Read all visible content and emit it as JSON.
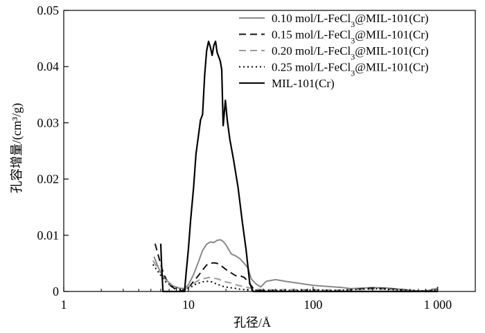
{
  "chart_data": {
    "type": "line",
    "title": "",
    "xlabel": "孔径/Å",
    "ylabel": "孔容增量/(cm³/g)",
    "x_scale": "log",
    "xlim": [
      1,
      2000
    ],
    "ylim": [
      0,
      0.05
    ],
    "x_ticks": [
      1,
      10,
      100,
      1000
    ],
    "x_tick_labels": [
      "1",
      "10",
      "100",
      "1 000"
    ],
    "y_ticks": [
      0,
      0.01,
      0.02,
      0.03,
      0.04,
      0.05
    ],
    "y_tick_labels": [
      "0",
      "0.01",
      "0.02",
      "0.03",
      "0.04",
      "0.05"
    ],
    "grid": false,
    "legend_position": "top-right",
    "series": [
      {
        "name": "0.10 mol/L-FeCl3@MIL-101(Cr)",
        "color": "#888888",
        "dash": "solid",
        "points": [
          [
            5.3,
            0.0062
          ],
          [
            5.8,
            0.004
          ],
          [
            6.5,
            0.0022
          ],
          [
            7.5,
            0.001
          ],
          [
            8.5,
            0.0006
          ],
          [
            9.3,
            0.0005
          ],
          [
            10,
            0.0012
          ],
          [
            11,
            0.003
          ],
          [
            12,
            0.0052
          ],
          [
            13,
            0.0073
          ],
          [
            14,
            0.0084
          ],
          [
            15,
            0.0088
          ],
          [
            16,
            0.0087
          ],
          [
            17,
            0.0091
          ],
          [
            18,
            0.0092
          ],
          [
            19,
            0.0089
          ],
          [
            20,
            0.0083
          ],
          [
            22,
            0.0067
          ],
          [
            24,
            0.0063
          ],
          [
            26,
            0.0058
          ],
          [
            28,
            0.005
          ],
          [
            30,
            0.0042
          ],
          [
            32,
            0.0022
          ],
          [
            35,
            0.0013
          ],
          [
            38,
            0.0008
          ],
          [
            42,
            0.0018
          ],
          [
            50,
            0.0021
          ],
          [
            60,
            0.0018
          ],
          [
            80,
            0.0014
          ],
          [
            100,
            0.0011
          ],
          [
            130,
            0.0009
          ],
          [
            170,
            0.0007
          ],
          [
            200,
            0.0005
          ],
          [
            250,
            0.0006
          ],
          [
            300,
            0.0007
          ],
          [
            400,
            0.0006
          ],
          [
            550,
            0.0003
          ],
          [
            700,
            0.0001
          ],
          [
            850,
            0.0002
          ],
          [
            1000,
            0.0006
          ]
        ]
      },
      {
        "name": "0.15 mol/L-FeCl3@MIL-101(Cr)",
        "color": "#111111",
        "dash": "10,6",
        "points": [
          [
            5.4,
            0.0085
          ],
          [
            5.8,
            0.006
          ],
          [
            6.3,
            0.0032
          ],
          [
            7,
            0.0012
          ],
          [
            8,
            0.0003
          ],
          [
            9,
            0.0001
          ],
          [
            10,
            0.0006
          ],
          [
            11,
            0.0018
          ],
          [
            12,
            0.0028
          ],
          [
            13,
            0.0038
          ],
          [
            14,
            0.0047
          ],
          [
            15,
            0.005
          ],
          [
            16,
            0.0051
          ],
          [
            17,
            0.005
          ],
          [
            18,
            0.0047
          ],
          [
            20,
            0.0039
          ],
          [
            22,
            0.0033
          ],
          [
            24,
            0.0028
          ],
          [
            26,
            0.0028
          ],
          [
            28,
            0.0025
          ],
          [
            30,
            0.0018
          ],
          [
            33,
            0.0006
          ],
          [
            36,
            0.0002
          ],
          [
            45,
            0.0002
          ],
          [
            60,
            0.0003
          ],
          [
            80,
            0.0003
          ],
          [
            100,
            0.0003
          ],
          [
            150,
            0.0002
          ],
          [
            200,
            0.0003
          ],
          [
            250,
            0.0005
          ],
          [
            300,
            0.0006
          ],
          [
            400,
            0.0005
          ],
          [
            550,
            0.0003
          ],
          [
            700,
            0.0001
          ],
          [
            850,
            0.0001
          ],
          [
            1000,
            0.0003
          ]
        ]
      },
      {
        "name": "0.20 mol/L-FeCl3@MIL-101(Cr)",
        "color": "#999999",
        "dash": "10,6",
        "points": [
          [
            5.2,
            0.0055
          ],
          [
            5.8,
            0.0038
          ],
          [
            6.5,
            0.0022
          ],
          [
            7.5,
            0.001
          ],
          [
            8.5,
            0.0005
          ],
          [
            9.5,
            0.0005
          ],
          [
            10.5,
            0.001
          ],
          [
            11.5,
            0.0017
          ],
          [
            12.5,
            0.0022
          ],
          [
            13.5,
            0.0023
          ],
          [
            14.5,
            0.0025
          ],
          [
            15.5,
            0.0024
          ],
          [
            16.5,
            0.0023
          ],
          [
            17.5,
            0.0022
          ],
          [
            18.5,
            0.0019
          ],
          [
            20,
            0.0017
          ],
          [
            22,
            0.0015
          ],
          [
            24,
            0.0012
          ],
          [
            26,
            0.001
          ],
          [
            28,
            0.0009
          ],
          [
            30,
            0.0007
          ],
          [
            35,
            0.0004
          ],
          [
            45,
            0.0003
          ],
          [
            60,
            0.0003
          ],
          [
            80,
            0.0003
          ],
          [
            100,
            0.0003
          ],
          [
            150,
            0.0002
          ],
          [
            200,
            0.0003
          ],
          [
            300,
            0.0004
          ],
          [
            400,
            0.0004
          ],
          [
            550,
            0.0002
          ],
          [
            700,
            0.0001
          ],
          [
            900,
            0.0001
          ],
          [
            1000,
            0.0002
          ]
        ]
      },
      {
        "name": "0.25 mol/L-FeCl3@MIL-101(Cr)",
        "color": "#000000",
        "dash": "2,4",
        "points": [
          [
            5.2,
            0.0048
          ],
          [
            5.8,
            0.0033
          ],
          [
            6.5,
            0.0018
          ],
          [
            7.5,
            0.0008
          ],
          [
            8.5,
            0.0004
          ],
          [
            9.5,
            0.0003
          ],
          [
            10.5,
            0.0008
          ],
          [
            11.5,
            0.0013
          ],
          [
            12.5,
            0.0016
          ],
          [
            13.5,
            0.0018
          ],
          [
            14.5,
            0.0018
          ],
          [
            15.5,
            0.0017
          ],
          [
            16.5,
            0.0014
          ],
          [
            17.5,
            0.0012
          ],
          [
            19,
            0.0009
          ],
          [
            21,
            0.0007
          ],
          [
            23,
            0.0006
          ],
          [
            26,
            0.0004
          ],
          [
            30,
            0.0003
          ],
          [
            40,
            0.0002
          ],
          [
            60,
            0.0002
          ],
          [
            80,
            0.0002
          ],
          [
            100,
            0.0003
          ],
          [
            150,
            0.0002
          ],
          [
            200,
            0.0003
          ],
          [
            300,
            0.0005
          ],
          [
            400,
            0.0004
          ],
          [
            550,
            0.0002
          ],
          [
            700,
            0.0001
          ],
          [
            1000,
            0.0002
          ]
        ]
      },
      {
        "name": "MIL-101(Cr)",
        "color": "#000000",
        "dash": "solid",
        "points": [
          [
            6,
            0.0085
          ],
          [
            6.1,
            0.0045
          ],
          [
            6.25,
            0.0
          ],
          [
            9.3,
            0.0
          ],
          [
            9.6,
            0.0035
          ],
          [
            10,
            0.0075
          ],
          [
            10.4,
            0.0125
          ],
          [
            11,
            0.0185
          ],
          [
            11.5,
            0.0245
          ],
          [
            12,
            0.0275
          ],
          [
            12.5,
            0.0305
          ],
          [
            13,
            0.0315
          ],
          [
            13.5,
            0.0385
          ],
          [
            14,
            0.0428
          ],
          [
            14.5,
            0.0445
          ],
          [
            15,
            0.0435
          ],
          [
            15.5,
            0.042
          ],
          [
            16,
            0.0438
          ],
          [
            16.5,
            0.0445
          ],
          [
            17,
            0.0425
          ],
          [
            18,
            0.041
          ],
          [
            18.5,
            0.0395
          ],
          [
            19,
            0.0295
          ],
          [
            19.8,
            0.034
          ],
          [
            20.5,
            0.0305
          ],
          [
            21.5,
            0.027
          ],
          [
            23,
            0.0235
          ],
          [
            25,
            0.0185
          ],
          [
            27,
            0.0125
          ],
          [
            29,
            0.0075
          ],
          [
            31,
            0.0015
          ],
          [
            33,
            0.0
          ],
          [
            1000,
            0.0
          ]
        ]
      }
    ]
  }
}
